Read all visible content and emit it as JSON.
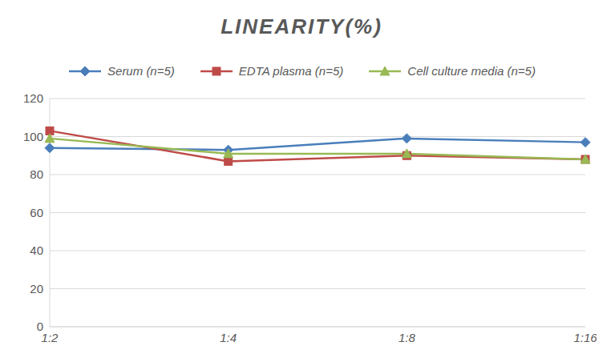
{
  "chart_data": {
    "type": "line",
    "title": "LINEARITY(%)",
    "categories": [
      "1:2",
      "1:4",
      "1:8",
      "1:16"
    ],
    "series": [
      {
        "name": "Serum (n=5)",
        "color": "#4a7ebb",
        "marker": "diamond",
        "values": [
          94,
          93,
          99,
          97
        ]
      },
      {
        "name": "EDTA plasma (n=5)",
        "color": "#be4b48",
        "marker": "square",
        "values": [
          103,
          87,
          90,
          88
        ]
      },
      {
        "name": "Cell culture media (n=5)",
        "color": "#98b954",
        "marker": "triangle",
        "values": [
          99,
          91,
          91,
          88
        ]
      }
    ],
    "ylim": [
      0,
      120
    ],
    "yticks": [
      0,
      20,
      40,
      60,
      80,
      100,
      120
    ],
    "grid": true,
    "legend": "top"
  }
}
